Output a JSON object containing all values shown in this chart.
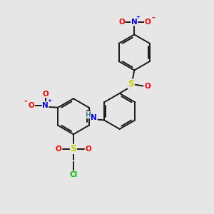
{
  "background_color": "#e6e6e6",
  "bond_color": "#1a1a1a",
  "colors": {
    "N": "#0000ff",
    "O": "#ff0000",
    "S": "#cccc00",
    "Cl": "#00bb00",
    "H": "#4a8a8a",
    "C": "#1a1a1a"
  },
  "figsize": [
    3.0,
    3.0
  ],
  "dpi": 100
}
